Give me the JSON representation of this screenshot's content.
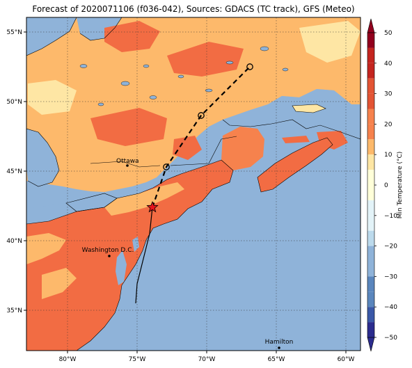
{
  "title": "Forecast of 2020071106 (f036-042), Sources: GDACS (TC track), GFS (Meteo)",
  "map": {
    "longitude_ticks": [
      "80°W",
      "75°W",
      "70°W",
      "65°W",
      "60°W"
    ],
    "latitude_ticks": [
      "55°N",
      "50°N",
      "45°N",
      "40°N",
      "35°N"
    ],
    "extent": {
      "lon_min": -83,
      "lon_max": -59,
      "lat_min": 32.7,
      "lat_max": 56
    },
    "gridlines": true,
    "places": [
      {
        "name": "Ottawa",
        "lon": -75.7,
        "lat": 45.4
      },
      {
        "name": "Washington D.C.",
        "lon": -77.0,
        "lat": 38.9
      },
      {
        "name": "Hamilton",
        "lon": -64.8,
        "lat": 32.3
      }
    ],
    "track": {
      "forecast_points": [
        {
          "lon": -72.9,
          "lat": 45.3
        },
        {
          "lon": -70.4,
          "lat": 49.0
        },
        {
          "lon": -66.9,
          "lat": 52.5
        }
      ],
      "current_position": {
        "lon": -73.9,
        "lat": 42.4
      },
      "past_track": [
        {
          "lon": -75.1,
          "lat": 35.5
        },
        {
          "lon": -75.0,
          "lat": 36.9
        },
        {
          "lon": -74.6,
          "lat": 38.5
        },
        {
          "lon": -74.1,
          "lat": 40.5
        },
        {
          "lon": -73.9,
          "lat": 42.4
        }
      ]
    }
  },
  "colorbar": {
    "label": "Min Temperature (°C)",
    "ticks": [
      "50",
      "40",
      "30",
      "20",
      "10",
      "0",
      "−10",
      "−20",
      "−30",
      "−40",
      "−50"
    ],
    "bands": [
      "#2b2c8e",
      "#3a58a8",
      "#5a86bd",
      "#8fb3d9",
      "#bcdaec",
      "#e3f3f8",
      "#ffffd9",
      "#fee6a4",
      "#fdb96b",
      "#f6824d",
      "#e35434",
      "#c4251f",
      "#92001d"
    ]
  },
  "colors": {
    "ocean": "#8fb3d9",
    "warm_10_15": "#fdb96b",
    "warm_15_20": "#fdbc70",
    "warm_20_25": "#f26c43",
    "mild_5_10": "#fee6a4",
    "cool": "#ffffd9"
  }
}
